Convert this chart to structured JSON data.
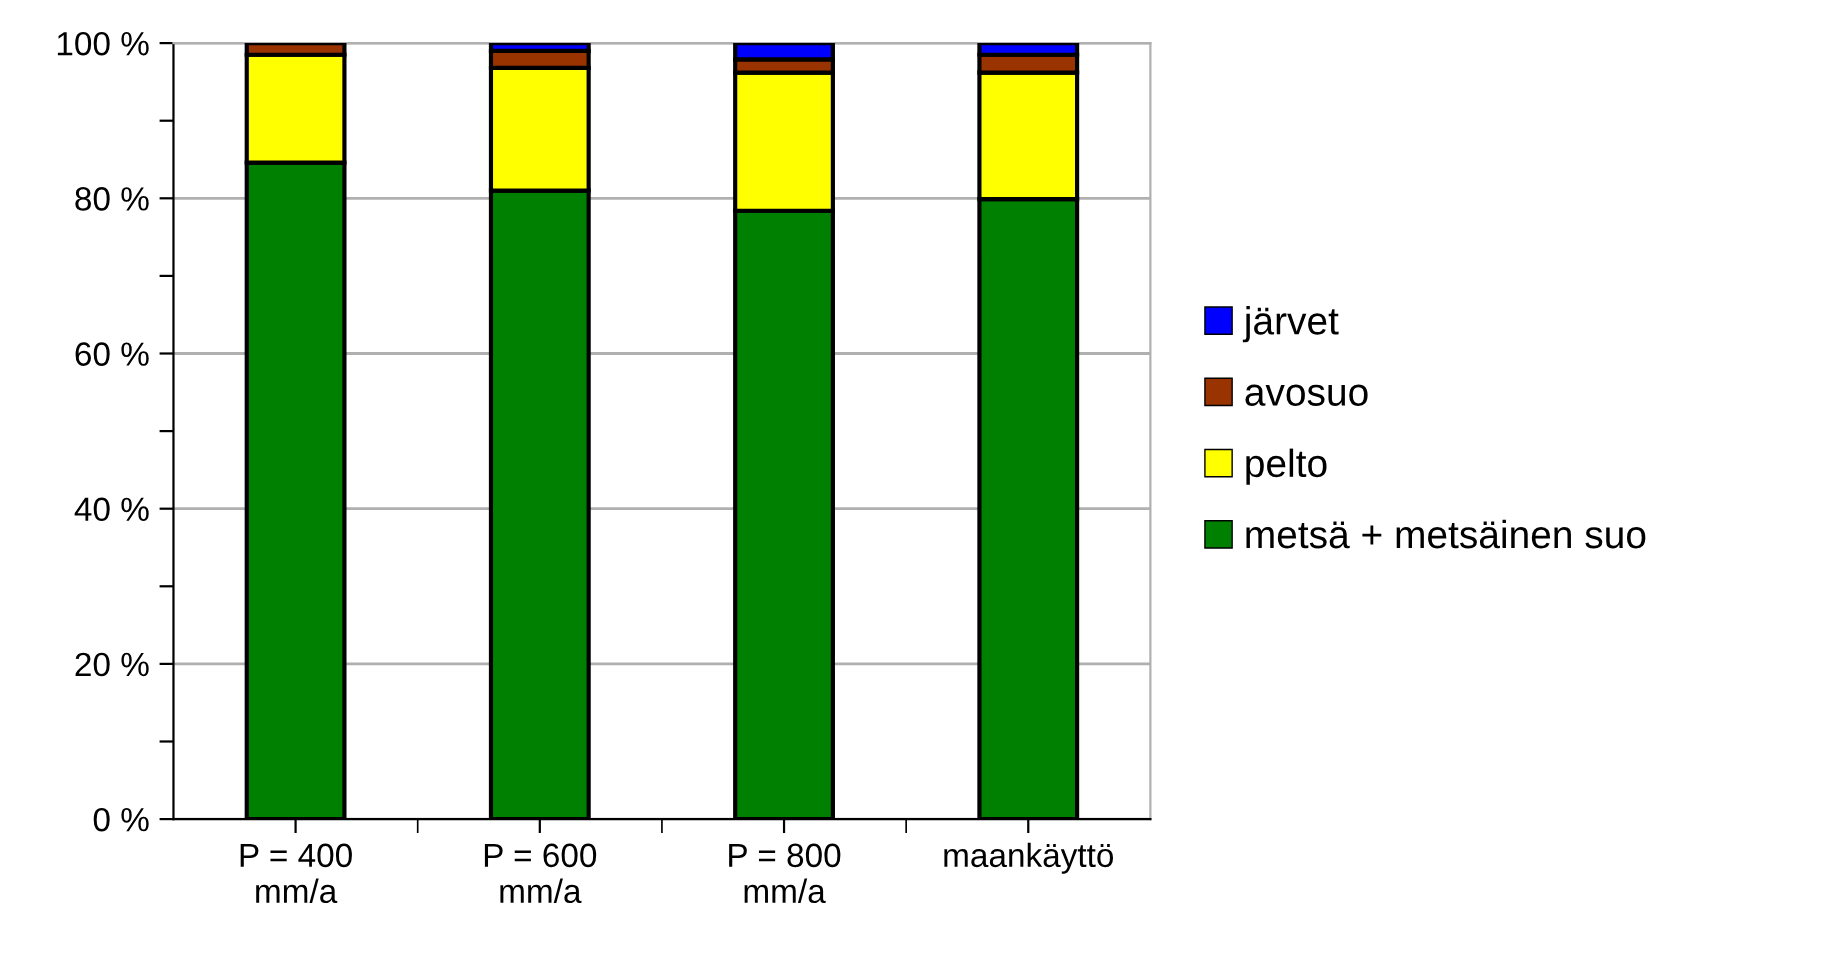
{
  "chart_data": {
    "type": "bar",
    "stacked": true,
    "categories": [
      "P = 400\nmm/a",
      "P = 600\nmm/a",
      "P = 800\nmm/a",
      "maankäyttö"
    ],
    "series": [
      {
        "name": "metsä + metsäinen suo",
        "color": "#008000",
        "values": [
          84.6,
          81.0,
          78.4,
          79.9
        ]
      },
      {
        "name": "pelto",
        "color": "#ffff00",
        "values": [
          13.9,
          15.8,
          17.8,
          16.3
        ]
      },
      {
        "name": "avosuo",
        "color": "#993300",
        "values": [
          1.5,
          2.2,
          1.7,
          2.3
        ]
      },
      {
        "name": "järvet",
        "color": "#0000ff",
        "values": [
          null,
          1.0,
          2.1,
          1.5
        ]
      }
    ],
    "ylim": [
      0,
      100
    ],
    "yticks": [
      {
        "value": 0,
        "label": "0 %"
      },
      {
        "value": 10,
        "label": null
      },
      {
        "value": 20,
        "label": "20 %"
      },
      {
        "value": 30,
        "label": null
      },
      {
        "value": 40,
        "label": "40 %"
      },
      {
        "value": 50,
        "label": null
      },
      {
        "value": 60,
        "label": "60 %"
      },
      {
        "value": 70,
        "label": null
      },
      {
        "value": 80,
        "label": "80 %"
      },
      {
        "value": 90,
        "label": null
      },
      {
        "value": 100,
        "label": "100 %"
      }
    ],
    "grid": "y",
    "legend": "right"
  }
}
